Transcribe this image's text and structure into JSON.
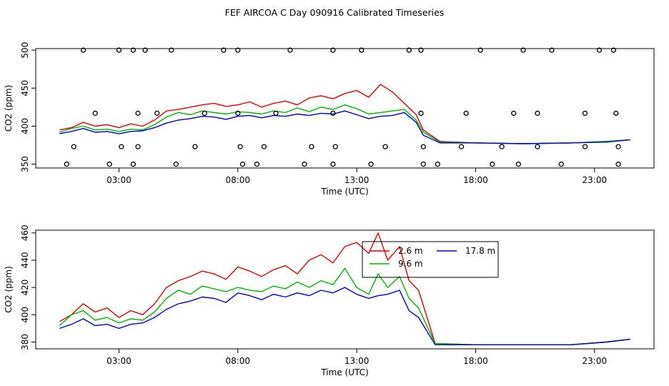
{
  "title": "FEF AIRCOA C  Day 090916  Calibrated Timeseries",
  "chart_data": [
    {
      "type": "line",
      "panel": "top",
      "xlabel": "Time (UTC)",
      "ylabel": "CO2 (ppm)",
      "xlim": [
        -0.5,
        25.5
      ],
      "ylim": [
        345,
        502
      ],
      "xticks": [
        3,
        8,
        13,
        18,
        23
      ],
      "xtick_labels": [
        "03:00",
        "08:00",
        "13:00",
        "18:00",
        "23:00"
      ],
      "yticks": [
        350,
        400,
        450,
        500
      ],
      "ytick_labels": [
        "350",
        "400",
        "450",
        "500"
      ],
      "series": [
        {
          "name": "2.6 m",
          "color": "#e00000",
          "x": [
            0.5,
            1.0,
            1.5,
            2.0,
            2.5,
            3.0,
            3.5,
            4.0,
            4.5,
            5.0,
            5.5,
            6.0,
            6.5,
            7.0,
            7.5,
            8.0,
            8.5,
            9.0,
            9.5,
            10.0,
            10.5,
            11.0,
            11.5,
            12.0,
            12.5,
            13.0,
            13.5,
            14.0,
            14.5,
            15.0,
            15.5,
            15.8,
            16.5,
            18.0,
            20.0,
            22.0,
            23.5,
            24.5
          ],
          "y": [
            395,
            398,
            405,
            400,
            402,
            398,
            403,
            400,
            408,
            420,
            422,
            425,
            428,
            430,
            426,
            428,
            432,
            425,
            430,
            433,
            428,
            437,
            440,
            436,
            443,
            447,
            438,
            455,
            445,
            430,
            415,
            395,
            380,
            378,
            377,
            378,
            380,
            382
          ]
        },
        {
          "name": "9.6 m",
          "color": "#00b400",
          "x": [
            0.5,
            1.0,
            1.5,
            2.0,
            2.5,
            3.0,
            3.5,
            4.0,
            4.5,
            5.0,
            5.5,
            6.0,
            6.5,
            7.0,
            7.5,
            8.0,
            8.5,
            9.0,
            9.5,
            10.0,
            10.5,
            11.0,
            11.5,
            12.0,
            12.5,
            13.0,
            13.5,
            14.0,
            14.5,
            15.0,
            15.5,
            15.8,
            16.5,
            18.0,
            20.0,
            22.0,
            23.5,
            24.5
          ],
          "y": [
            392,
            397,
            400,
            395,
            396,
            393,
            396,
            395,
            402,
            412,
            418,
            415,
            420,
            418,
            416,
            419,
            418,
            416,
            420,
            418,
            424,
            419,
            425,
            422,
            428,
            423,
            416,
            418,
            420,
            422,
            408,
            392,
            379,
            378,
            377,
            378,
            380,
            382
          ]
        },
        {
          "name": "17.8 m",
          "color": "#0000d0",
          "x": [
            0.5,
            1.0,
            1.5,
            2.0,
            2.5,
            3.0,
            3.5,
            4.0,
            4.5,
            5.0,
            5.5,
            6.0,
            6.5,
            7.0,
            7.5,
            8.0,
            8.5,
            9.0,
            9.5,
            10.0,
            10.5,
            11.0,
            11.5,
            12.0,
            12.5,
            13.0,
            13.5,
            14.0,
            14.5,
            15.0,
            15.5,
            15.8,
            16.5,
            18.0,
            20.0,
            22.0,
            23.5,
            24.5
          ],
          "y": [
            390,
            393,
            397,
            392,
            393,
            390,
            393,
            394,
            398,
            404,
            408,
            410,
            413,
            412,
            409,
            413,
            414,
            411,
            414,
            413,
            416,
            414,
            417,
            416,
            420,
            415,
            410,
            413,
            414,
            418,
            405,
            388,
            378,
            378,
            377,
            378,
            379,
            382
          ]
        }
      ],
      "markers": {
        "symbol": "open-circle",
        "x": [
          1.5,
          3.0,
          3.6,
          4.1,
          5.2,
          7.4,
          8.0,
          10.2,
          12.0,
          13.2,
          15.2,
          15.7,
          18.2,
          20.0,
          21.2,
          23.2,
          23.8,
          2.0,
          3.8,
          4.6,
          6.6,
          8.0,
          9.6,
          12.0,
          15.7,
          17.6,
          19.6,
          20.6,
          22.6,
          23.9,
          1.1,
          3.1,
          3.8,
          6.2,
          8.1,
          9.1,
          11.1,
          12.1,
          14.2,
          15.8,
          17.4,
          19.1,
          20.6,
          22.6,
          24.0,
          0.8,
          2.6,
          3.6,
          5.4,
          8.2,
          8.8,
          10.8,
          12.0,
          13.6,
          15.8,
          16.4,
          18.7,
          19.8,
          21.6,
          24.0
        ],
        "y": [
          500,
          500,
          500,
          500,
          500,
          500,
          500,
          500,
          500,
          500,
          500,
          500,
          500,
          500,
          500,
          500,
          500,
          417,
          417,
          417,
          417,
          417,
          417,
          417,
          417,
          417,
          417,
          417,
          417,
          417,
          373,
          373,
          373,
          373,
          373,
          373,
          373,
          373,
          373,
          373,
          373,
          373,
          373,
          373,
          373,
          350,
          350,
          350,
          350,
          350,
          350,
          350,
          350,
          350,
          350,
          350,
          350,
          350,
          350,
          350
        ]
      }
    },
    {
      "type": "line",
      "panel": "bottom",
      "xlabel": "Time (UTC)",
      "ylabel": "CO2 (ppm)",
      "xlim": [
        -0.5,
        25.5
      ],
      "ylim": [
        375,
        462
      ],
      "xticks": [
        3,
        8,
        13,
        18,
        23
      ],
      "xtick_labels": [
        "03:00",
        "08:00",
        "13:00",
        "18:00",
        "23:00"
      ],
      "yticks": [
        380,
        400,
        420,
        440,
        460
      ],
      "ytick_labels": [
        "380",
        "400",
        "420",
        "440",
        "460"
      ],
      "legend": {
        "position": "top-center",
        "entries": [
          {
            "label": "2.6 m",
            "color": "#e00000"
          },
          {
            "label": "9.6 m",
            "color": "#00b400"
          },
          {
            "label": "17.8 m",
            "color": "#0000d0"
          }
        ]
      },
      "series": [
        {
          "name": "2.6 m",
          "color": "#e00000",
          "x": [
            0.5,
            1.0,
            1.5,
            2.0,
            2.5,
            3.0,
            3.5,
            4.0,
            4.5,
            5.0,
            5.5,
            6.0,
            6.5,
            7.0,
            7.5,
            8.0,
            8.5,
            9.0,
            9.5,
            10.0,
            10.5,
            11.0,
            11.5,
            12.0,
            12.5,
            13.0,
            13.5,
            13.9,
            14.3,
            14.8,
            15.2,
            15.6,
            16.3,
            18.0,
            20.0,
            22.0,
            23.5,
            24.5
          ],
          "y": [
            395,
            400,
            408,
            402,
            405,
            398,
            403,
            400,
            408,
            420,
            425,
            428,
            432,
            430,
            426,
            435,
            432,
            428,
            433,
            436,
            430,
            440,
            444,
            438,
            450,
            453,
            445,
            460,
            440,
            450,
            425,
            418,
            379,
            378,
            378,
            378,
            380,
            382
          ]
        },
        {
          "name": "9.6 m",
          "color": "#00b400",
          "x": [
            0.5,
            1.0,
            1.5,
            2.0,
            2.5,
            3.0,
            3.5,
            4.0,
            4.5,
            5.0,
            5.5,
            6.0,
            6.5,
            7.0,
            7.5,
            8.0,
            8.5,
            9.0,
            9.5,
            10.0,
            10.5,
            11.0,
            11.5,
            12.0,
            12.5,
            13.0,
            13.5,
            13.9,
            14.3,
            14.8,
            15.2,
            15.6,
            16.3,
            18.0,
            20.0,
            22.0,
            23.5,
            24.5
          ],
          "y": [
            392,
            400,
            403,
            396,
            398,
            394,
            397,
            396,
            402,
            412,
            418,
            415,
            421,
            419,
            417,
            420,
            418,
            417,
            421,
            419,
            424,
            420,
            425,
            422,
            434,
            420,
            415,
            430,
            420,
            428,
            412,
            405,
            379,
            378,
            378,
            378,
            380,
            382
          ]
        },
        {
          "name": "17.8 m",
          "color": "#0000d0",
          "x": [
            0.5,
            1.0,
            1.5,
            2.0,
            2.5,
            3.0,
            3.5,
            4.0,
            4.5,
            5.0,
            5.5,
            6.0,
            6.5,
            7.0,
            7.5,
            8.0,
            8.5,
            9.0,
            9.5,
            10.0,
            10.5,
            11.0,
            11.5,
            12.0,
            12.5,
            13.0,
            13.5,
            13.9,
            14.3,
            14.8,
            15.2,
            15.6,
            16.3,
            18.0,
            20.0,
            22.0,
            23.5,
            24.5
          ],
          "y": [
            390,
            393,
            397,
            392,
            393,
            390,
            393,
            394,
            398,
            404,
            408,
            410,
            413,
            412,
            409,
            416,
            414,
            411,
            415,
            413,
            416,
            414,
            418,
            416,
            420,
            415,
            412,
            414,
            415,
            418,
            403,
            398,
            378,
            378,
            378,
            378,
            380,
            382
          ]
        }
      ]
    }
  ]
}
